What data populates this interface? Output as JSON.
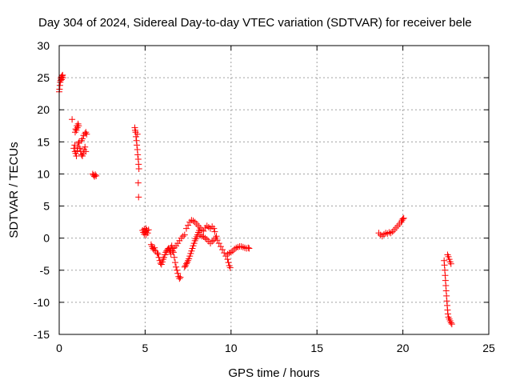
{
  "chart_data": {
    "type": "scatter",
    "title": "Day 304 of 2024, Sidereal Day-to-day VTEC variation (SDTVAR) for receiver bele",
    "xlabel": "GPS time / hours",
    "ylabel": "SDTVAR / TECUs",
    "xlim": [
      0,
      25
    ],
    "ylim": [
      -15,
      30
    ],
    "xticks": [
      0,
      5,
      10,
      15,
      20,
      25
    ],
    "yticks": [
      -15,
      -10,
      -5,
      0,
      5,
      10,
      15,
      20,
      25,
      30
    ],
    "grid": true,
    "marker": "+",
    "color": "#ff0000",
    "series": [
      {
        "name": "SDTVAR",
        "points": [
          [
            0.0,
            22.8
          ],
          [
            0.02,
            23.2
          ],
          [
            0.04,
            23.8
          ],
          [
            0.06,
            24.3
          ],
          [
            0.08,
            24.6
          ],
          [
            0.1,
            24.9
          ],
          [
            0.12,
            25.1
          ],
          [
            0.14,
            24.7
          ],
          [
            0.17,
            25.3
          ],
          [
            0.2,
            25.4
          ],
          [
            0.22,
            25.0
          ],
          [
            0.75,
            18.5
          ],
          [
            0.85,
            14.0
          ],
          [
            0.9,
            14.5
          ],
          [
            0.93,
            16.5
          ],
          [
            0.96,
            17.0
          ],
          [
            1.0,
            16.8
          ],
          [
            1.03,
            17.5
          ],
          [
            1.06,
            17.2
          ],
          [
            1.1,
            17.8
          ],
          [
            1.13,
            17.5
          ],
          [
            0.92,
            13.5
          ],
          [
            0.96,
            13.2
          ],
          [
            1.0,
            12.8
          ],
          [
            1.04,
            13.6
          ],
          [
            1.08,
            14.2
          ],
          [
            1.12,
            14.8
          ],
          [
            1.16,
            15.0
          ],
          [
            1.2,
            14.0
          ],
          [
            1.25,
            13.5
          ],
          [
            1.3,
            13.0
          ],
          [
            1.35,
            12.8
          ],
          [
            1.4,
            13.2
          ],
          [
            1.45,
            13.8
          ],
          [
            1.5,
            14.2
          ],
          [
            1.55,
            13.5
          ],
          [
            1.3,
            15.2
          ],
          [
            1.35,
            15.5
          ],
          [
            1.42,
            16.0
          ],
          [
            1.5,
            16.3
          ],
          [
            1.55,
            16.5
          ],
          [
            1.6,
            16.2
          ],
          [
            1.95,
            10.0
          ],
          [
            2.0,
            9.8
          ],
          [
            2.05,
            9.6
          ],
          [
            2.1,
            9.9
          ],
          [
            2.15,
            9.7
          ],
          [
            4.4,
            17.2
          ],
          [
            4.42,
            16.8
          ],
          [
            4.45,
            16.5
          ],
          [
            4.47,
            15.8
          ],
          [
            4.5,
            15.2
          ],
          [
            4.52,
            14.5
          ],
          [
            4.55,
            13.8
          ],
          [
            4.57,
            13.0
          ],
          [
            4.6,
            12.3
          ],
          [
            4.62,
            11.5
          ],
          [
            4.64,
            10.8
          ],
          [
            4.55,
            16.2
          ],
          [
            4.6,
            8.6
          ],
          [
            4.62,
            6.4
          ],
          [
            4.85,
            1.2
          ],
          [
            4.9,
            0.9
          ],
          [
            4.95,
            1.4
          ],
          [
            5.0,
            1.0
          ],
          [
            5.05,
            1.5
          ],
          [
            5.1,
            1.2
          ],
          [
            5.15,
            0.8
          ],
          [
            5.2,
            1.3
          ],
          [
            4.95,
            0.6
          ],
          [
            5.05,
            0.5
          ],
          [
            5.35,
            -1.0
          ],
          [
            5.4,
            -1.3
          ],
          [
            5.45,
            -1.6
          ],
          [
            5.5,
            -1.8
          ],
          [
            5.55,
            -1.5
          ],
          [
            5.6,
            -2.0
          ],
          [
            5.7,
            -2.3
          ],
          [
            5.75,
            -2.5
          ],
          [
            5.8,
            -3.0
          ],
          [
            5.85,
            -3.5
          ],
          [
            5.9,
            -3.9
          ],
          [
            5.95,
            -4.1
          ],
          [
            6.0,
            -3.7
          ],
          [
            6.05,
            -3.3
          ],
          [
            6.1,
            -3.0
          ],
          [
            6.15,
            -2.6
          ],
          [
            6.2,
            -2.2
          ],
          [
            6.25,
            -2.0
          ],
          [
            6.3,
            -1.8
          ],
          [
            6.35,
            -1.6
          ],
          [
            6.4,
            -1.8
          ],
          [
            6.45,
            -2.0
          ],
          [
            6.5,
            -1.5
          ],
          [
            6.55,
            -1.2
          ],
          [
            6.6,
            -1.6
          ],
          [
            6.65,
            -2.2
          ],
          [
            6.7,
            -3.0
          ],
          [
            6.75,
            -3.8
          ],
          [
            6.8,
            -4.5
          ],
          [
            6.85,
            -5.0
          ],
          [
            6.9,
            -5.5
          ],
          [
            6.95,
            -6.0
          ],
          [
            7.0,
            -6.3
          ],
          [
            7.05,
            -6.1
          ],
          [
            6.5,
            -2.5
          ],
          [
            6.6,
            -2.0
          ],
          [
            6.7,
            -1.5
          ],
          [
            6.8,
            -1.2
          ],
          [
            6.9,
            -0.8
          ],
          [
            7.0,
            -0.4
          ],
          [
            7.1,
            0.0
          ],
          [
            7.2,
            0.3
          ],
          [
            7.3,
            0.5
          ],
          [
            7.3,
            -4.5
          ],
          [
            7.35,
            -4.3
          ],
          [
            7.4,
            -4.0
          ],
          [
            7.45,
            -3.8
          ],
          [
            7.5,
            -3.5
          ],
          [
            7.55,
            -3.2
          ],
          [
            7.6,
            -2.8
          ],
          [
            7.65,
            -2.4
          ],
          [
            7.7,
            -2.0
          ],
          [
            7.75,
            -1.6
          ],
          [
            7.8,
            -1.2
          ],
          [
            7.85,
            -0.8
          ],
          [
            7.9,
            -0.4
          ],
          [
            7.95,
            -0.1
          ],
          [
            8.0,
            0.2
          ],
          [
            8.05,
            0.5
          ],
          [
            8.1,
            0.9
          ],
          [
            8.15,
            1.2
          ],
          [
            7.4,
            1.5
          ],
          [
            7.5,
            2.0
          ],
          [
            7.6,
            2.5
          ],
          [
            7.7,
            2.8
          ],
          [
            7.8,
            2.7
          ],
          [
            7.9,
            2.5
          ],
          [
            8.0,
            2.2
          ],
          [
            8.1,
            1.9
          ],
          [
            8.2,
            1.6
          ],
          [
            8.3,
            1.3
          ],
          [
            8.4,
            1.1
          ],
          [
            8.5,
            1.6
          ],
          [
            8.6,
            1.9
          ],
          [
            8.7,
            1.7
          ],
          [
            8.8,
            1.5
          ],
          [
            8.9,
            1.8
          ],
          [
            9.0,
            1.5
          ],
          [
            9.05,
            1.0
          ],
          [
            8.2,
            0.5
          ],
          [
            8.3,
            0.3
          ],
          [
            8.4,
            0.2
          ],
          [
            8.5,
            0.0
          ],
          [
            8.6,
            -0.2
          ],
          [
            8.7,
            -0.5
          ],
          [
            8.8,
            -0.8
          ],
          [
            8.9,
            -0.5
          ],
          [
            9.0,
            -0.3
          ],
          [
            9.1,
            0.0
          ],
          [
            9.15,
            0.3
          ],
          [
            9.2,
            -0.3
          ],
          [
            9.3,
            -0.8
          ],
          [
            9.4,
            -1.3
          ],
          [
            9.5,
            -1.8
          ],
          [
            9.6,
            -2.3
          ],
          [
            9.7,
            -2.8
          ],
          [
            9.8,
            -3.3
          ],
          [
            9.85,
            -3.8
          ],
          [
            9.9,
            -4.3
          ],
          [
            9.95,
            -4.6
          ],
          [
            9.8,
            -2.5
          ],
          [
            9.9,
            -2.3
          ],
          [
            10.0,
            -2.2
          ],
          [
            10.1,
            -2.0
          ],
          [
            10.2,
            -1.7
          ],
          [
            10.3,
            -1.5
          ],
          [
            10.4,
            -1.4
          ],
          [
            10.5,
            -1.3
          ],
          [
            10.6,
            -1.3
          ],
          [
            10.7,
            -1.4
          ],
          [
            10.8,
            -1.5
          ],
          [
            10.9,
            -1.6
          ],
          [
            11.0,
            -1.5
          ],
          [
            11.05,
            -1.6
          ],
          [
            18.6,
            0.8
          ],
          [
            18.7,
            0.5
          ],
          [
            18.8,
            0.3
          ],
          [
            18.9,
            0.6
          ],
          [
            19.0,
            0.8
          ],
          [
            19.1,
            0.7
          ],
          [
            19.2,
            0.9
          ],
          [
            19.3,
            0.8
          ],
          [
            19.4,
            1.0
          ],
          [
            19.5,
            1.3
          ],
          [
            19.6,
            1.6
          ],
          [
            19.7,
            1.9
          ],
          [
            19.8,
            2.2
          ],
          [
            19.9,
            2.5
          ],
          [
            19.95,
            2.8
          ],
          [
            20.0,
            3.0
          ],
          [
            20.05,
            3.1
          ],
          [
            22.4,
            -3.5
          ],
          [
            22.42,
            -4.2
          ],
          [
            22.44,
            -5.0
          ],
          [
            22.46,
            -5.8
          ],
          [
            22.48,
            -6.6
          ],
          [
            22.5,
            -7.4
          ],
          [
            22.52,
            -8.2
          ],
          [
            22.54,
            -9.0
          ],
          [
            22.56,
            -9.8
          ],
          [
            22.58,
            -10.5
          ],
          [
            22.6,
            -11.2
          ],
          [
            22.62,
            -11.8
          ],
          [
            22.65,
            -12.3
          ],
          [
            22.7,
            -12.6
          ],
          [
            22.75,
            -12.9
          ],
          [
            22.8,
            -13.2
          ],
          [
            22.85,
            -13.4
          ],
          [
            22.6,
            -2.6
          ],
          [
            22.65,
            -2.9
          ],
          [
            22.7,
            -3.3
          ],
          [
            22.75,
            -3.7
          ],
          [
            22.8,
            -4.0
          ]
        ]
      }
    ]
  }
}
